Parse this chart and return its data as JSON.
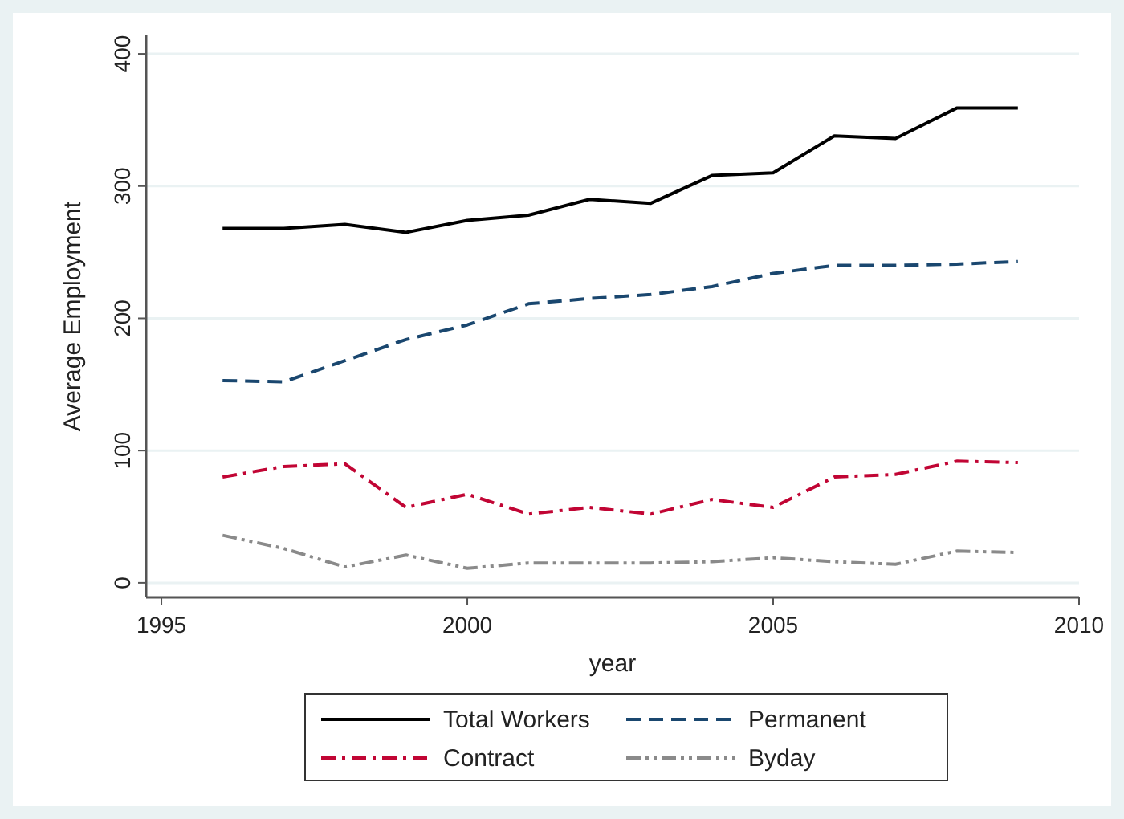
{
  "chart_data": {
    "type": "line",
    "xlabel": "year",
    "ylabel": "Average Employment",
    "x": [
      1996,
      1997,
      1998,
      1999,
      2000,
      2001,
      2002,
      2003,
      2004,
      2005,
      2006,
      2007,
      2008,
      2009
    ],
    "series": [
      {
        "name": "Total Workers",
        "color": "#000000",
        "line_style": "solid",
        "values": [
          268,
          268,
          271,
          265,
          274,
          278,
          290,
          287,
          308,
          310,
          338,
          336,
          359,
          359
        ]
      },
      {
        "name": "Permanent",
        "color": "#1a476f",
        "line_style": "dashed",
        "values": [
          153,
          152,
          168,
          184,
          195,
          211,
          215,
          218,
          224,
          234,
          240,
          240,
          241,
          243
        ]
      },
      {
        "name": "Contract",
        "color": "#c10534",
        "line_style": "dashdot",
        "values": [
          80,
          88,
          90,
          57,
          67,
          52,
          57,
          52,
          63,
          57,
          80,
          82,
          92,
          91
        ]
      },
      {
        "name": "Byday",
        "color": "#8a8a8a",
        "line_style": "dashdotdot",
        "values": [
          36,
          26,
          12,
          21,
          11,
          15,
          15,
          15,
          16,
          19,
          16,
          14,
          24,
          23
        ]
      }
    ],
    "xlim": [
      1994.75,
      2010
    ],
    "xticks": [
      1995,
      2000,
      2005,
      2010
    ],
    "ylim": [
      -11,
      414
    ],
    "yticks": [
      0,
      100,
      200,
      300,
      400
    ],
    "grid": "y",
    "legend": "bottom",
    "marker": "none"
  }
}
